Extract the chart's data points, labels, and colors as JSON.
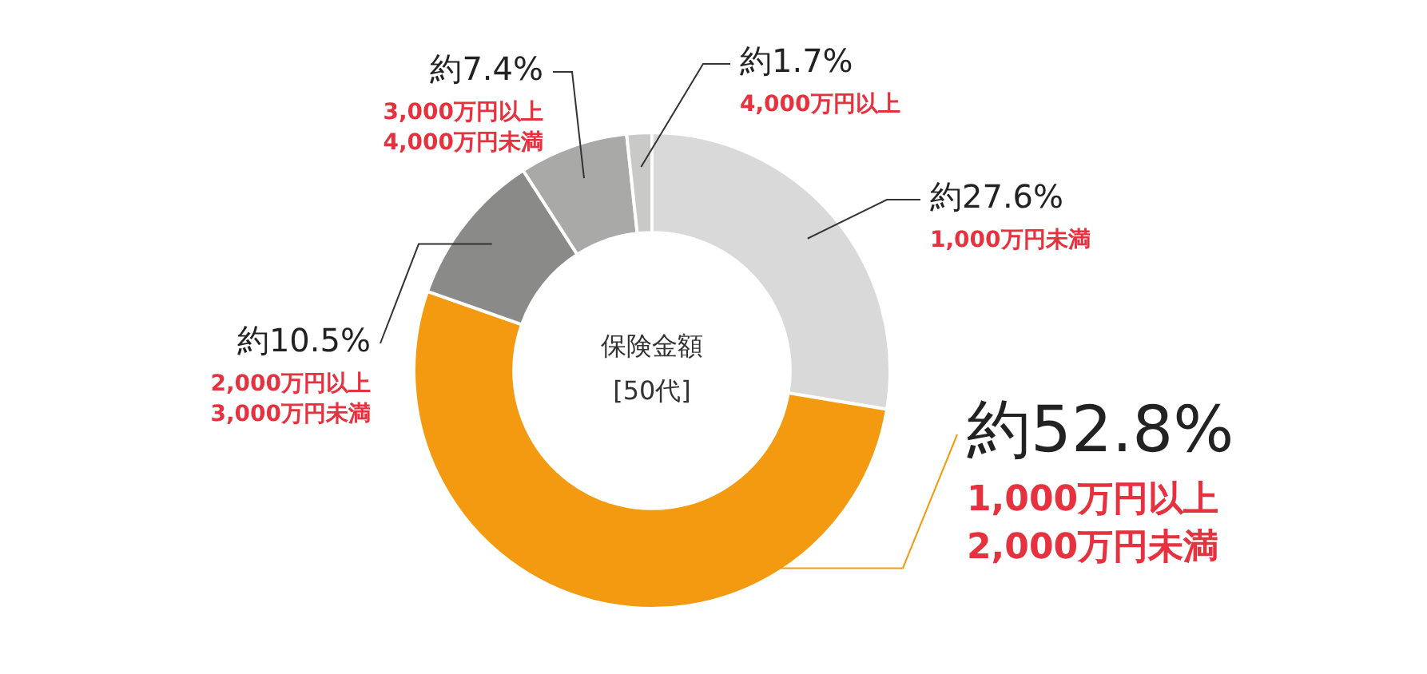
{
  "chart_data": {
    "type": "donut",
    "title": "保険金額",
    "subtitle": "[50代]",
    "categories": [
      "1,000万円未満",
      "1,000万円以上\n2,000万円未満",
      "2,000万円以上\n3,000万円未満",
      "3,000万円以上\n4,000万円未満",
      "4,000万円以上"
    ],
    "values": [
      27.6,
      52.8,
      10.5,
      7.4,
      1.7
    ],
    "value_labels": [
      "約27.6%",
      "約52.8%",
      "約10.5%",
      "約7.4%",
      "約1.7%"
    ],
    "colors": [
      "#d9d9d9",
      "#f39a10",
      "#8a8a89",
      "#a9a9a8",
      "#c9c9c8"
    ],
    "legend": false
  }
}
